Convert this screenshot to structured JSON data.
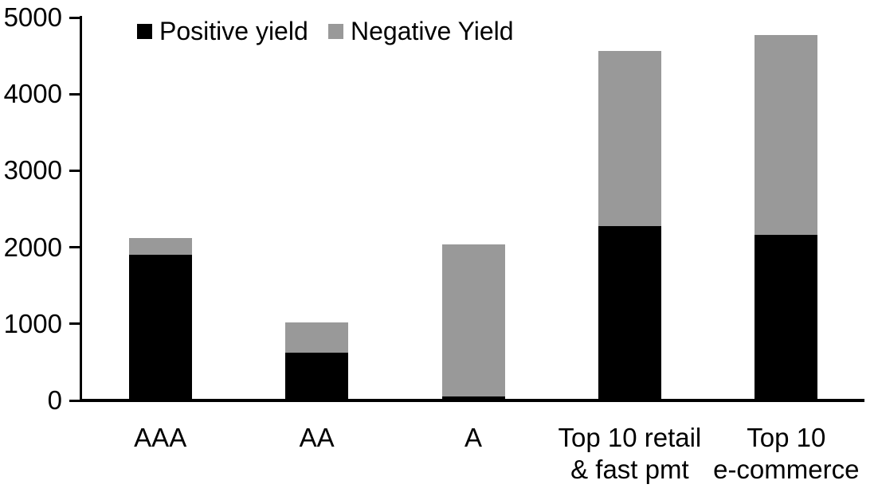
{
  "chart_data": {
    "type": "bar",
    "stacked": true,
    "title": "",
    "xlabel": "",
    "ylabel": "",
    "categories": [
      "AAA",
      "AA",
      "A",
      "Top 10 retail\n& fast pmt",
      "Top 10\ne-commerce"
    ],
    "series": [
      {
        "name": "Positive yield",
        "color": "#000000",
        "values": [
          1900,
          625,
          50,
          2280,
          2160
        ]
      },
      {
        "name": "Negative Yield",
        "color": "#999999",
        "values": [
          225,
          395,
          1990,
          2280,
          2610
        ]
      }
    ],
    "totals": [
      2125,
      1020,
      2040,
      4560,
      4770
    ],
    "ylim": [
      0,
      5000
    ],
    "yticks": [
      0,
      1000,
      2000,
      3000,
      4000,
      5000
    ],
    "legend_position": "top",
    "grid": false,
    "axis_color": "#000000",
    "background_color": "#ffffff"
  }
}
